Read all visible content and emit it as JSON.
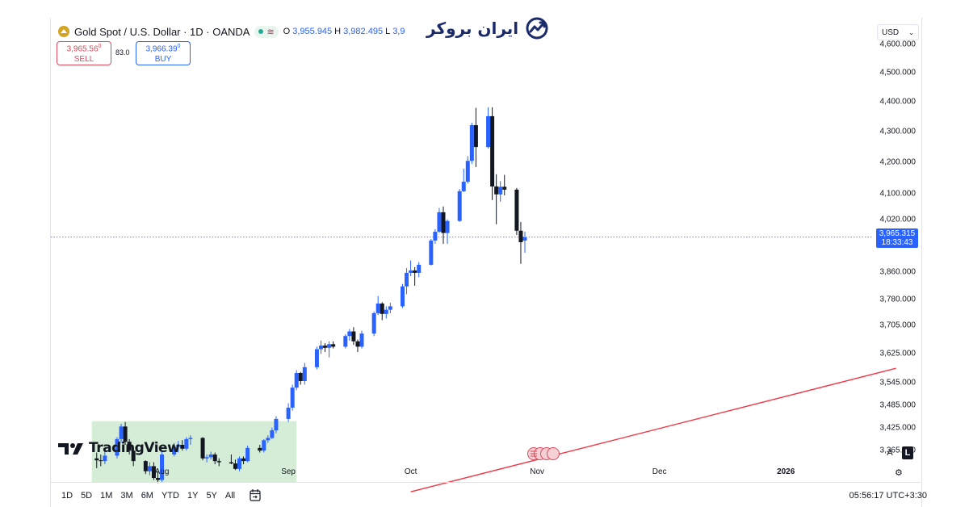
{
  "symbol": {
    "title": "Gold Spot / U.S. Dollar · 1D · OANDA",
    "icon": "gold-coin-icon",
    "status_icon": "market-open-dot-icon",
    "wave_icon": "wave-icon",
    "ohlc": [
      {
        "key": "O",
        "value": "3,955.945"
      },
      {
        "key": "H",
        "value": "3,982.495"
      },
      {
        "key": "L",
        "value": "3,9"
      }
    ]
  },
  "trade": {
    "sell_price": "3,965.56",
    "sell_price_small": "0",
    "sell_label": "SELL",
    "spread": "83.0",
    "buy_price": "3,966.39",
    "buy_price_small": "0",
    "buy_label": "BUY"
  },
  "watermark": {
    "text": "ایران بروکر",
    "icon": "growth-chart-icon"
  },
  "currency": {
    "label": "USD"
  },
  "price_axis": {
    "labels": [
      "4,600.000",
      "4,500.000",
      "4,400.000",
      "4,300.000",
      "4,200.000",
      "4,100.000",
      "4,020.000",
      "3,860.000",
      "3,780.000",
      "3,705.000",
      "3,625.000",
      "3,545.000",
      "3,485.000",
      "3,425.000",
      "3,365.000"
    ],
    "scale": "log"
  },
  "last_price": {
    "value": "3,965.315",
    "countdown": "18:33:43"
  },
  "time_axis": {
    "labels": [
      {
        "text": "Aug",
        "bold": false
      },
      {
        "text": "Sep",
        "bold": false
      },
      {
        "text": "Oct",
        "bold": false
      },
      {
        "text": "Nov",
        "bold": false
      },
      {
        "text": "Dec",
        "bold": false
      },
      {
        "text": "2026",
        "bold": true
      }
    ]
  },
  "scale_buttons": {
    "auto": "A",
    "log": "L"
  },
  "ranges": [
    "1D",
    "5D",
    "1M",
    "3M",
    "6M",
    "YTD",
    "1Y",
    "5Y",
    "All"
  ],
  "clock": "05:56:17 UTC+3:30",
  "branding": {
    "text": "TradingView",
    "icon": "tradingview-logo-icon"
  },
  "colors": {
    "up": "#2962ff",
    "down": "#131722",
    "trendline": "#f23645",
    "highlight_zone": "#d5ecd6",
    "sell": "#e0495a",
    "buy": "#2962ff"
  },
  "chart_data": {
    "type": "candlestick",
    "symbol": "XAUUSD",
    "interval": "1D",
    "y_scale": "log",
    "ylim": [
      3330,
      4700
    ],
    "candles": [
      {
        "d": "2025-07-16",
        "o": 3345,
        "h": 3360,
        "l": 3320,
        "c": 3340
      },
      {
        "d": "2025-07-17",
        "o": 3340,
        "h": 3355,
        "l": 3325,
        "c": 3338
      },
      {
        "d": "2025-07-18",
        "o": 3338,
        "h": 3370,
        "l": 3330,
        "c": 3352
      },
      {
        "d": "2025-07-21",
        "o": 3352,
        "h": 3400,
        "l": 3345,
        "c": 3395
      },
      {
        "d": "2025-07-22",
        "o": 3395,
        "h": 3435,
        "l": 3385,
        "c": 3428
      },
      {
        "d": "2025-07-23",
        "o": 3428,
        "h": 3440,
        "l": 3380,
        "c": 3388
      },
      {
        "d": "2025-07-24",
        "o": 3388,
        "h": 3395,
        "l": 3355,
        "c": 3365
      },
      {
        "d": "2025-07-25",
        "o": 3365,
        "h": 3375,
        "l": 3325,
        "c": 3338
      },
      {
        "d": "2025-07-28",
        "o": 3338,
        "h": 3340,
        "l": 3305,
        "c": 3312
      },
      {
        "d": "2025-07-29",
        "o": 3312,
        "h": 3335,
        "l": 3302,
        "c": 3325
      },
      {
        "d": "2025-07-30",
        "o": 3325,
        "h": 3335,
        "l": 3290,
        "c": 3295
      },
      {
        "d": "2025-07-31",
        "o": 3295,
        "h": 3312,
        "l": 3282,
        "c": 3290
      },
      {
        "d": "2025-08-01",
        "o": 3290,
        "h": 3362,
        "l": 3285,
        "c": 3355
      },
      {
        "d": "2025-08-04",
        "o": 3355,
        "h": 3385,
        "l": 3350,
        "c": 3375
      },
      {
        "d": "2025-08-05",
        "o": 3375,
        "h": 3390,
        "l": 3360,
        "c": 3380
      },
      {
        "d": "2025-08-06",
        "o": 3380,
        "h": 3392,
        "l": 3365,
        "c": 3370
      },
      {
        "d": "2025-08-07",
        "o": 3370,
        "h": 3400,
        "l": 3365,
        "c": 3395
      },
      {
        "d": "2025-08-08",
        "o": 3395,
        "h": 3405,
        "l": 3380,
        "c": 3398
      },
      {
        "d": "2025-08-11",
        "o": 3398,
        "h": 3400,
        "l": 3340,
        "c": 3345
      },
      {
        "d": "2025-08-12",
        "o": 3345,
        "h": 3355,
        "l": 3335,
        "c": 3348
      },
      {
        "d": "2025-08-13",
        "o": 3348,
        "h": 3362,
        "l": 3342,
        "c": 3355
      },
      {
        "d": "2025-08-14",
        "o": 3355,
        "h": 3360,
        "l": 3330,
        "c": 3338
      },
      {
        "d": "2025-08-15",
        "o": 3338,
        "h": 3345,
        "l": 3325,
        "c": 3335
      },
      {
        "d": "2025-08-18",
        "o": 3335,
        "h": 3355,
        "l": 3330,
        "c": 3332
      },
      {
        "d": "2025-08-19",
        "o": 3332,
        "h": 3342,
        "l": 3315,
        "c": 3318
      },
      {
        "d": "2025-08-20",
        "o": 3318,
        "h": 3350,
        "l": 3312,
        "c": 3345
      },
      {
        "d": "2025-08-21",
        "o": 3345,
        "h": 3350,
        "l": 3330,
        "c": 3338
      },
      {
        "d": "2025-08-22",
        "o": 3338,
        "h": 3378,
        "l": 3335,
        "c": 3372
      },
      {
        "d": "2025-08-25",
        "o": 3372,
        "h": 3380,
        "l": 3360,
        "c": 3365
      },
      {
        "d": "2025-08-26",
        "o": 3365,
        "h": 3395,
        "l": 3360,
        "c": 3392
      },
      {
        "d": "2025-08-27",
        "o": 3392,
        "h": 3405,
        "l": 3385,
        "c": 3398
      },
      {
        "d": "2025-08-28",
        "o": 3398,
        "h": 3425,
        "l": 3395,
        "c": 3418
      },
      {
        "d": "2025-08-29",
        "o": 3418,
        "h": 3455,
        "l": 3410,
        "c": 3448
      },
      {
        "d": "2025-09-01",
        "o": 3448,
        "h": 3490,
        "l": 3440,
        "c": 3478
      },
      {
        "d": "2025-09-02",
        "o": 3478,
        "h": 3540,
        "l": 3470,
        "c": 3532
      },
      {
        "d": "2025-09-03",
        "o": 3532,
        "h": 3580,
        "l": 3525,
        "c": 3572
      },
      {
        "d": "2025-09-04",
        "o": 3572,
        "h": 3575,
        "l": 3540,
        "c": 3550
      },
      {
        "d": "2025-09-05",
        "o": 3550,
        "h": 3600,
        "l": 3540,
        "c": 3588
      },
      {
        "d": "2025-09-08",
        "o": 3588,
        "h": 3645,
        "l": 3582,
        "c": 3638
      },
      {
        "d": "2025-09-09",
        "o": 3638,
        "h": 3662,
        "l": 3625,
        "c": 3648
      },
      {
        "d": "2025-09-10",
        "o": 3648,
        "h": 3655,
        "l": 3630,
        "c": 3642
      },
      {
        "d": "2025-09-11",
        "o": 3642,
        "h": 3660,
        "l": 3615,
        "c": 3652
      },
      {
        "d": "2025-09-12",
        "o": 3652,
        "h": 3660,
        "l": 3640,
        "c": 3645
      },
      {
        "d": "2025-09-15",
        "o": 3645,
        "h": 3680,
        "l": 3640,
        "c": 3675
      },
      {
        "d": "2025-09-16",
        "o": 3675,
        "h": 3695,
        "l": 3662,
        "c": 3688
      },
      {
        "d": "2025-09-17",
        "o": 3688,
        "h": 3700,
        "l": 3650,
        "c": 3660
      },
      {
        "d": "2025-09-18",
        "o": 3660,
        "h": 3665,
        "l": 3630,
        "c": 3645
      },
      {
        "d": "2025-09-19",
        "o": 3645,
        "h": 3690,
        "l": 3640,
        "c": 3682
      },
      {
        "d": "2025-09-22",
        "o": 3682,
        "h": 3745,
        "l": 3675,
        "c": 3740
      },
      {
        "d": "2025-09-23",
        "o": 3740,
        "h": 3790,
        "l": 3735,
        "c": 3768
      },
      {
        "d": "2025-09-24",
        "o": 3768,
        "h": 3772,
        "l": 3720,
        "c": 3738
      },
      {
        "d": "2025-09-25",
        "o": 3738,
        "h": 3760,
        "l": 3725,
        "c": 3750
      },
      {
        "d": "2025-09-26",
        "o": 3750,
        "h": 3770,
        "l": 3740,
        "c": 3760
      },
      {
        "d": "2025-09-29",
        "o": 3760,
        "h": 3825,
        "l": 3755,
        "c": 3818
      },
      {
        "d": "2025-09-30",
        "o": 3818,
        "h": 3872,
        "l": 3795,
        "c": 3858
      },
      {
        "d": "2025-10-01",
        "o": 3858,
        "h": 3895,
        "l": 3848,
        "c": 3865
      },
      {
        "d": "2025-10-02",
        "o": 3865,
        "h": 3875,
        "l": 3820,
        "c": 3858
      },
      {
        "d": "2025-10-03",
        "o": 3858,
        "h": 3890,
        "l": 3845,
        "c": 3882
      },
      {
        "d": "2025-10-06",
        "o": 3882,
        "h": 3960,
        "l": 3880,
        "c": 3955
      },
      {
        "d": "2025-10-07",
        "o": 3955,
        "h": 3990,
        "l": 3945,
        "c": 3982
      },
      {
        "d": "2025-10-08",
        "o": 3982,
        "h": 4055,
        "l": 3978,
        "c": 4042
      },
      {
        "d": "2025-10-09",
        "o": 4042,
        "h": 4060,
        "l": 3945,
        "c": 3978
      },
      {
        "d": "2025-10-10",
        "o": 3978,
        "h": 4020,
        "l": 3945,
        "c": 4015
      },
      {
        "d": "2025-10-13",
        "o": 4015,
        "h": 4115,
        "l": 4012,
        "c": 4108
      },
      {
        "d": "2025-10-14",
        "o": 4108,
        "h": 4180,
        "l": 4105,
        "c": 4138
      },
      {
        "d": "2025-10-15",
        "o": 4138,
        "h": 4220,
        "l": 4132,
        "c": 4205
      },
      {
        "d": "2025-10-16",
        "o": 4205,
        "h": 4330,
        "l": 4195,
        "c": 4322
      },
      {
        "d": "2025-10-17",
        "o": 4322,
        "h": 4380,
        "l": 4185,
        "c": 4250
      },
      {
        "d": "2025-10-20",
        "o": 4250,
        "h": 4382,
        "l": 4245,
        "c": 4352
      },
      {
        "d": "2025-10-21",
        "o": 4352,
        "h": 4382,
        "l": 4080,
        "c": 4123
      },
      {
        "d": "2025-10-22",
        "o": 4123,
        "h": 4162,
        "l": 4005,
        "c": 4098
      },
      {
        "d": "2025-10-23",
        "o": 4098,
        "h": 4140,
        "l": 4075,
        "c": 4122
      },
      {
        "d": "2025-10-24",
        "o": 4122,
        "h": 4160,
        "l": 4095,
        "c": 4113
      },
      {
        "d": "2025-10-27",
        "o": 4113,
        "h": 4118,
        "l": 3972,
        "c": 3985
      },
      {
        "d": "2025-10-28",
        "o": 3985,
        "h": 4012,
        "l": 3885,
        "c": 3950
      },
      {
        "d": "2025-10-29",
        "o": 3955,
        "h": 3982,
        "l": 3918,
        "c": 3965
      }
    ],
    "trendline": {
      "from": {
        "d": "2025-10-01",
        "price": 3260
      },
      "to": {
        "d": "2026-01-28",
        "price": 3585
      }
    },
    "highlight_zone": {
      "from": "2025-07-16",
      "to": "2025-09-02",
      "low": 3285,
      "high": 3442
    },
    "last_price_line": 3965.315
  }
}
